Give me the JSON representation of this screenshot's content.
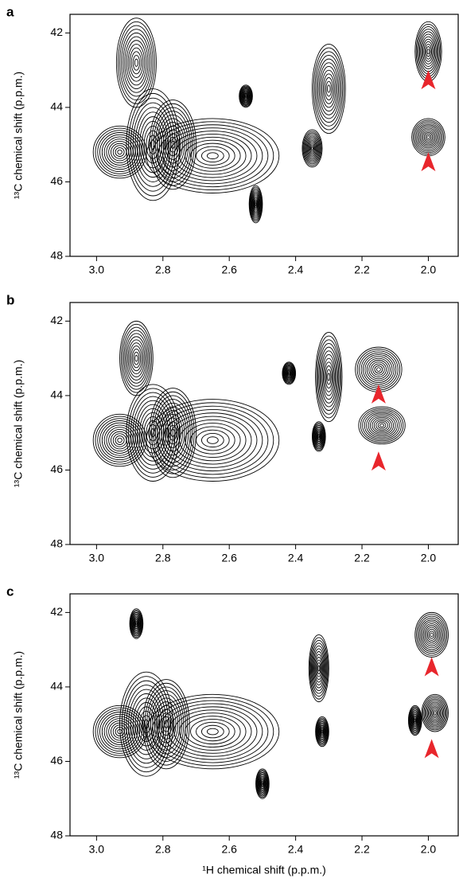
{
  "chart_data": [
    {
      "type": "contour",
      "panel": "a",
      "ylabel": "¹³C chemical shift (p.p.m.)",
      "x": [
        2.83,
        2.77,
        2.93,
        2.3,
        2.35,
        2.0,
        2.0,
        2.55,
        2.52,
        2.88,
        2.65
      ],
      "values": [
        45.0,
        45.0,
        45.2,
        43.5,
        45.1,
        42.5,
        44.8,
        43.7,
        46.6,
        42.8,
        45.3
      ],
      "x_widths": [
        0.08,
        0.07,
        0.08,
        0.05,
        0.03,
        0.04,
        0.05,
        0.02,
        0.02,
        0.06,
        0.2
      ],
      "y_widths": [
        1.5,
        1.2,
        0.7,
        1.2,
        0.5,
        0.8,
        0.5,
        0.3,
        0.5,
        1.2,
        1.0
      ],
      "arrows": {
        "x": [
          2.0,
          2.0
        ],
        "y": [
          43.3,
          45.5
        ],
        "color": "#e8262c"
      },
      "xlim": [
        3.08,
        1.91
      ],
      "ylim": [
        48,
        41.5
      ],
      "xticks": [
        {
          "value": 3.0,
          "label": "3.0"
        },
        2.8,
        2.6,
        2.4,
        2.2,
        {
          "value": 2.0,
          "label": "2.0"
        }
      ],
      "yticks": [
        42,
        44,
        46,
        48
      ]
    },
    {
      "type": "contour",
      "panel": "b",
      "ylabel": "¹³C chemical shift (p.p.m.)",
      "x": [
        2.83,
        2.77,
        2.93,
        2.3,
        2.33,
        2.15,
        2.14,
        2.88,
        2.65,
        2.42
      ],
      "values": [
        45.0,
        45.0,
        45.2,
        43.5,
        45.1,
        43.3,
        44.8,
        43.0,
        45.2,
        43.4
      ],
      "x_widths": [
        0.08,
        0.07,
        0.08,
        0.04,
        0.02,
        0.07,
        0.07,
        0.05,
        0.2,
        0.02
      ],
      "y_widths": [
        1.3,
        1.2,
        0.7,
        1.2,
        0.4,
        0.6,
        0.5,
        1.0,
        1.1,
        0.3
      ],
      "arrows": {
        "x": [
          2.15,
          2.15
        ],
        "y": [
          44.0,
          45.8
        ],
        "color": "#e8262c"
      },
      "xlim": [
        3.08,
        1.91
      ],
      "ylim": [
        48,
        41.5
      ],
      "xticks": [
        {
          "value": 3.0,
          "label": "3.0"
        },
        2.8,
        2.6,
        2.4,
        2.2,
        {
          "value": 2.0,
          "label": "2.0"
        }
      ],
      "yticks": [
        42,
        44,
        46,
        48
      ]
    },
    {
      "type": "contour",
      "panel": "c",
      "ylabel": "¹³C chemical shift (p.p.m.)",
      "xlabel": "¹H chemical shift (p.p.m.)",
      "x": [
        2.85,
        2.79,
        2.93,
        2.33,
        2.32,
        1.99,
        1.98,
        2.88,
        2.65,
        2.5,
        2.04
      ],
      "values": [
        45.0,
        45.0,
        45.2,
        43.5,
        45.2,
        42.6,
        44.7,
        42.3,
        45.2,
        46.6,
        44.9
      ],
      "x_widths": [
        0.08,
        0.07,
        0.08,
        0.03,
        0.02,
        0.05,
        0.04,
        0.02,
        0.2,
        0.02,
        0.02
      ],
      "y_widths": [
        1.4,
        1.2,
        0.7,
        0.9,
        0.4,
        0.6,
        0.5,
        0.4,
        1.0,
        0.4,
        0.4
      ],
      "arrows": {
        "x": [
          1.99,
          1.99
        ],
        "y": [
          43.5,
          45.7
        ],
        "color": "#e8262c"
      },
      "xlim": [
        3.08,
        1.91
      ],
      "ylim": [
        48,
        41.5
      ],
      "xticks": [
        {
          "value": 3.0,
          "label": "3.0"
        },
        2.8,
        2.6,
        2.4,
        2.2,
        {
          "value": 2.0,
          "label": "2.0"
        }
      ],
      "yticks": [
        42,
        44,
        46,
        48
      ]
    }
  ]
}
